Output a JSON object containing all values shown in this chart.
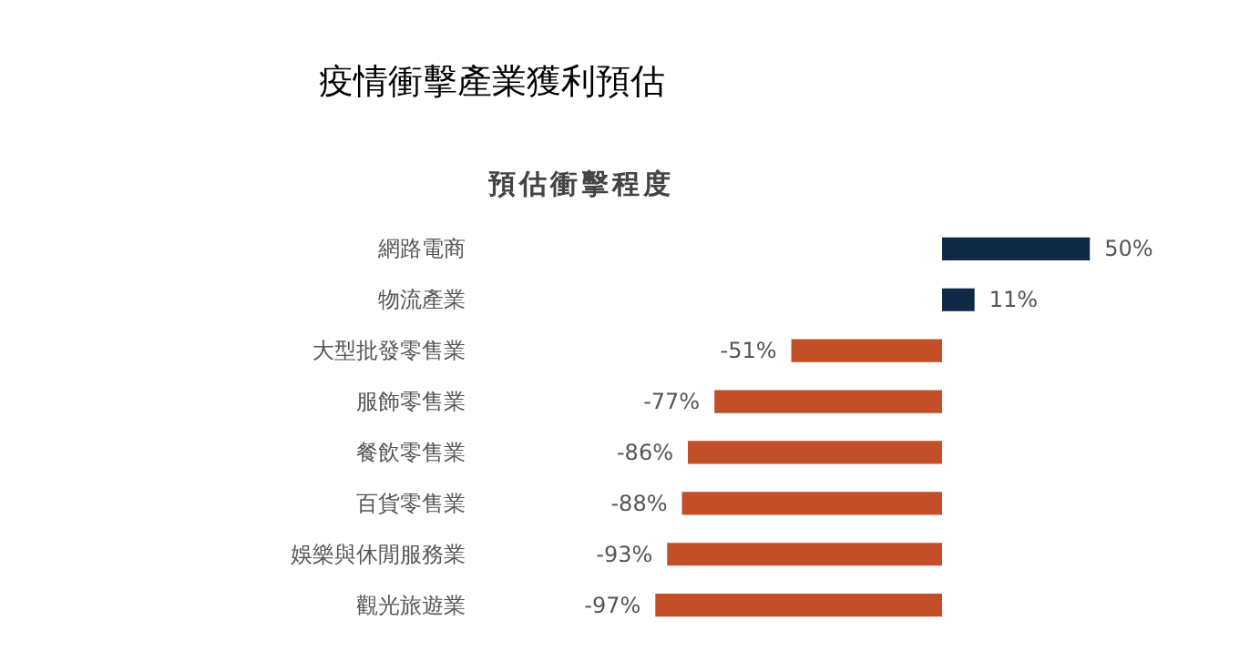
{
  "chart_data": {
    "type": "bar",
    "orientation": "horizontal",
    "title": "疫情衝擊產業獲利預估",
    "subtitle": "預估衝擊程度",
    "categories": [
      "網路電商",
      "物流產業",
      "大型批發零售業",
      "服飾零售業",
      "餐飲零售業",
      "百貨零售業",
      "娛樂與休閒服務業",
      "觀光旅遊業"
    ],
    "values": [
      50,
      11,
      -51,
      -77,
      -86,
      -88,
      -93,
      -97
    ],
    "colors": [
      "#0e2a47",
      "#0e2a47",
      "#c24f28",
      "#c24f28",
      "#c24f28",
      "#c24f28",
      "#c24f28",
      "#c24f28"
    ],
    "value_labels": [
      "50%",
      "11%",
      "-51%",
      "-77%",
      "-86%",
      "-88%",
      "-93%",
      "-97%"
    ]
  }
}
